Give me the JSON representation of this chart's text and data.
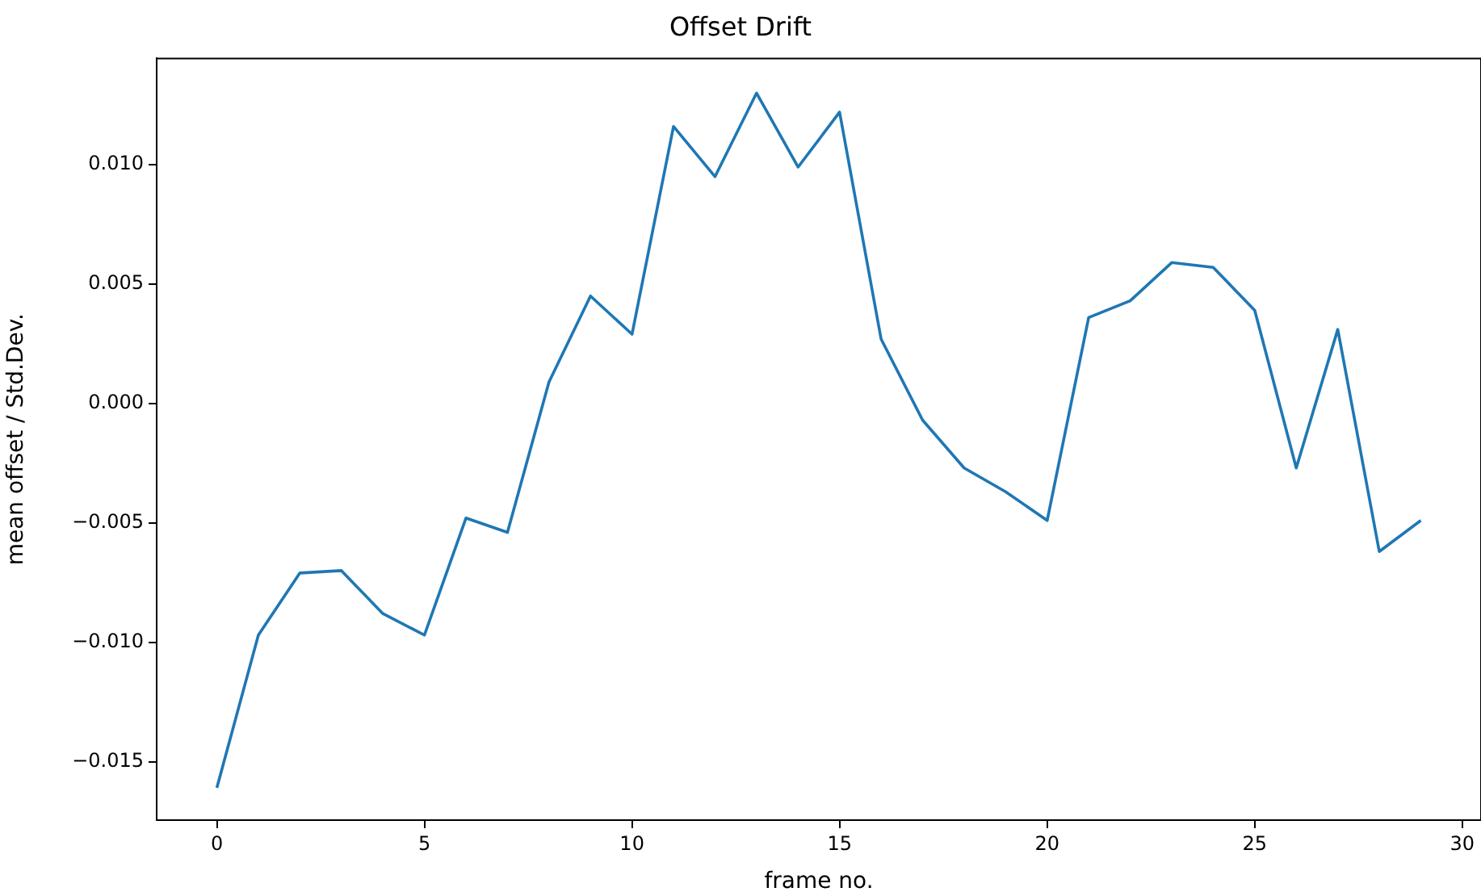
{
  "chart_data": {
    "type": "line",
    "title": "Offset Drift",
    "xlabel": "frame no.",
    "ylabel": "mean offset / Std.Dev.",
    "x": [
      0,
      1,
      2,
      3,
      4,
      5,
      6,
      7,
      8,
      9,
      10,
      11,
      12,
      13,
      14,
      15,
      16,
      17,
      18,
      19,
      20,
      21,
      22,
      23,
      24,
      25,
      26,
      27,
      28,
      29
    ],
    "series": [
      {
        "color": "#1f77b4",
        "values": [
          -0.0161,
          -0.0097,
          -0.0071,
          -0.007,
          -0.0088,
          -0.0097,
          -0.0048,
          -0.0054,
          0.0009,
          0.0045,
          0.0029,
          0.0116,
          0.0095,
          0.013,
          0.0099,
          0.0122,
          0.0027,
          -0.0007,
          -0.0027,
          -0.0037,
          -0.0049,
          0.0036,
          0.0043,
          0.0059,
          0.0057,
          0.0039,
          -0.0027,
          0.0031,
          -0.0062,
          -0.0049
        ]
      }
    ],
    "xlim": [
      -1.45,
      30.45
    ],
    "xticks": [
      0,
      5,
      10,
      15,
      20,
      25,
      30
    ],
    "ylim": [
      -0.01745,
      0.01445
    ],
    "yticks": [
      {
        "value": -0.015,
        "label": "−0.015"
      },
      {
        "value": -0.01,
        "label": "−0.010"
      },
      {
        "value": -0.005,
        "label": "−0.005"
      },
      {
        "value": 0,
        "label": "0.000"
      },
      {
        "value": 0.005,
        "label": "0.005"
      },
      {
        "value": 0.01,
        "label": "0.010"
      }
    ],
    "grid": false,
    "legend": false,
    "marker": "none",
    "line_style": "solid"
  }
}
